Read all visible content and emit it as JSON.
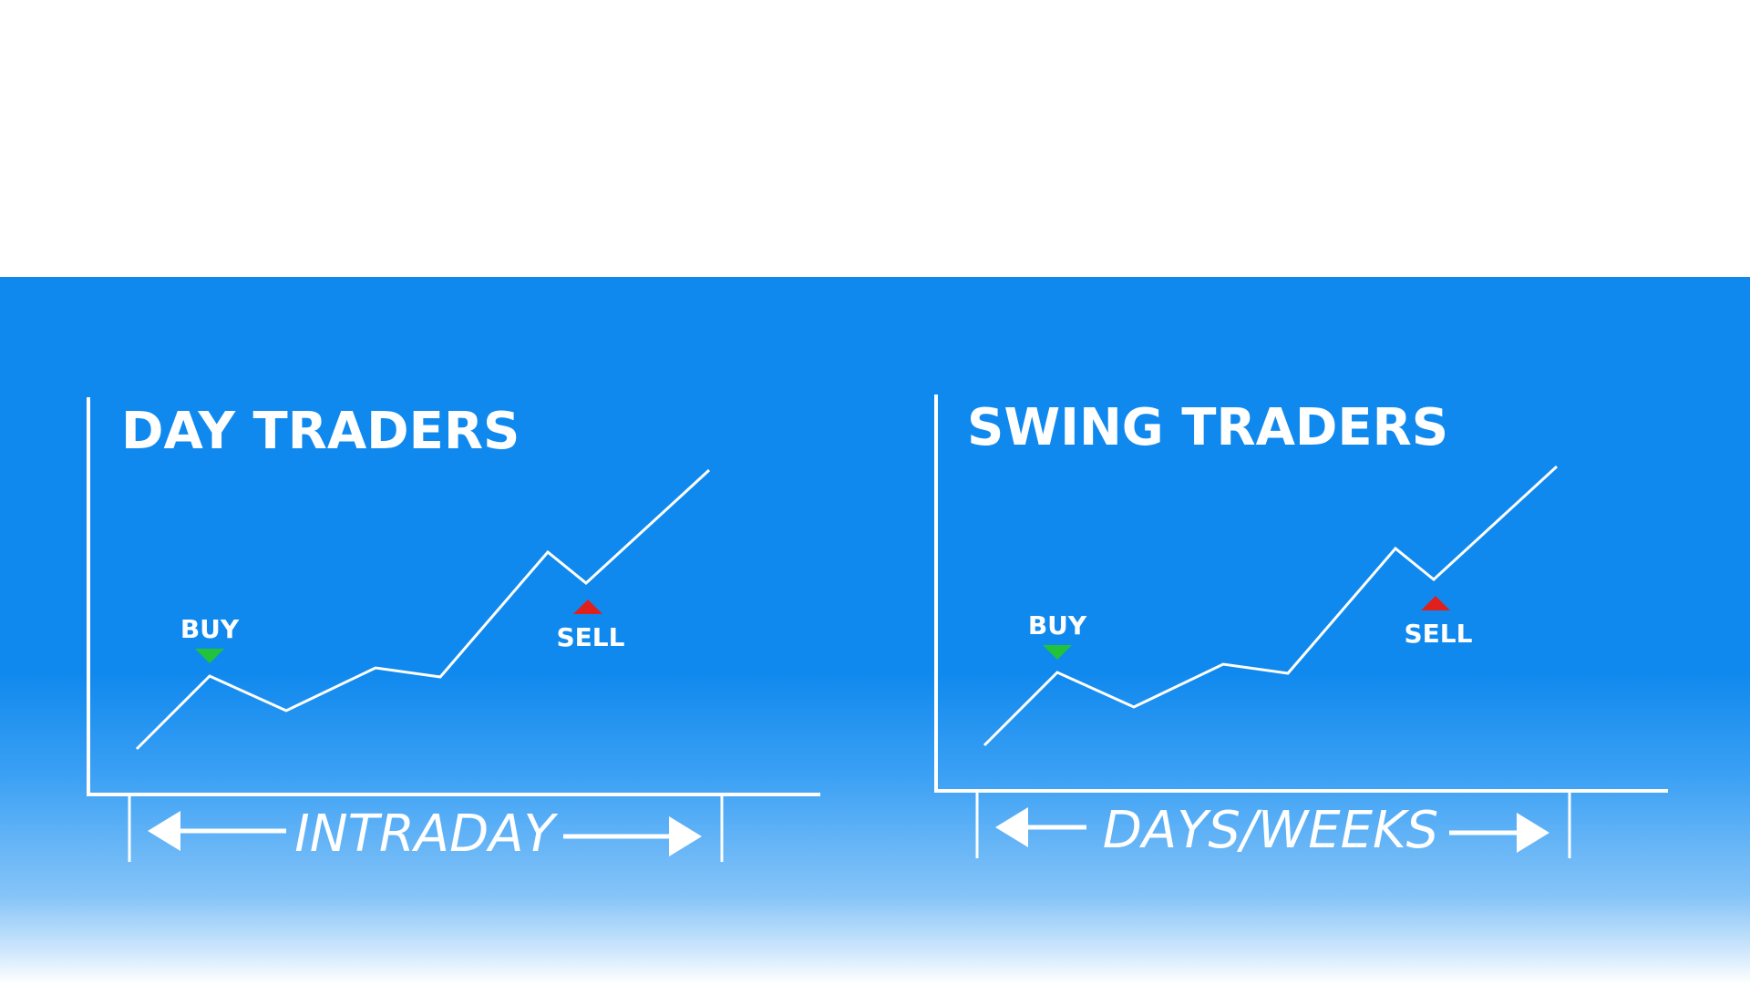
{
  "panels": [
    {
      "title": "DAY TRADERS",
      "buy_label": "BUY",
      "sell_label": "SELL",
      "span_label": "INTRADAY"
    },
    {
      "title": "SWING TRADERS",
      "buy_label": "BUY",
      "sell_label": "SELL",
      "span_label": "DAYS/WEEKS"
    }
  ],
  "colors": {
    "background": "#1089ee",
    "line": "#ffffff",
    "buy_marker": "#22c33a",
    "sell_marker": "#e0201c"
  }
}
